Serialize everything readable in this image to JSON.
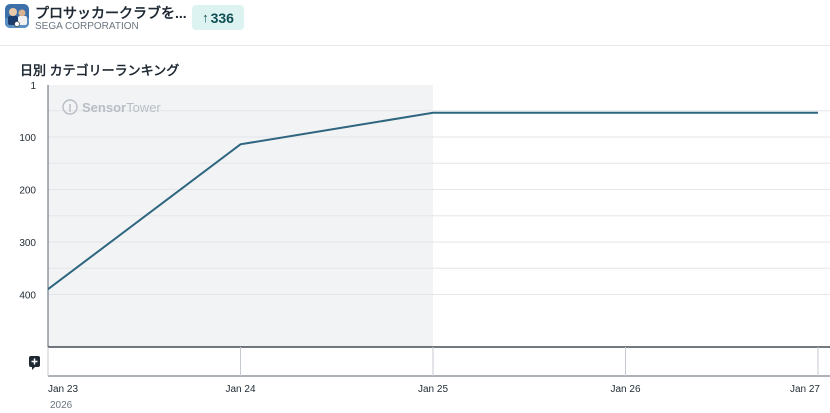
{
  "app": {
    "title": "プロサッカークラブを...",
    "publisher": "SEGA CORPORATION",
    "rank_change": "336",
    "rank_change_direction": "up"
  },
  "watermark": {
    "brand": "Sensor",
    "brand_suffix": "Tower"
  },
  "colors": {
    "line": "#2e6680",
    "badge_bg": "#ddf3f1",
    "badge_text": "#0e4e53",
    "shaded_region": "#f2f3f5"
  },
  "chart_data": {
    "type": "line",
    "title": "日別 カテゴリーランキング",
    "x_ticks": [
      "Jan 23",
      "Jan 24",
      "Jan 25",
      "Jan 26",
      "Jan 27"
    ],
    "x_year_label": "2026",
    "y_ticks": [
      "1",
      "100",
      "200",
      "300",
      "400"
    ],
    "y_tick_values": [
      1,
      100,
      200,
      300,
      400
    ],
    "y_inverted": true,
    "ylim": [
      1,
      500
    ],
    "series": [
      {
        "points": [
          {
            "x": "Jan 23",
            "y": 390
          },
          {
            "x": "Jan 24",
            "y": 114
          },
          {
            "x": "Jan 25",
            "y": 54
          },
          {
            "x": "Jan 26",
            "y": 54
          },
          {
            "x": "Jan 27",
            "y": 54
          }
        ]
      }
    ],
    "shaded_range": [
      "Jan 23",
      "Jan 25"
    ],
    "grid": true
  }
}
